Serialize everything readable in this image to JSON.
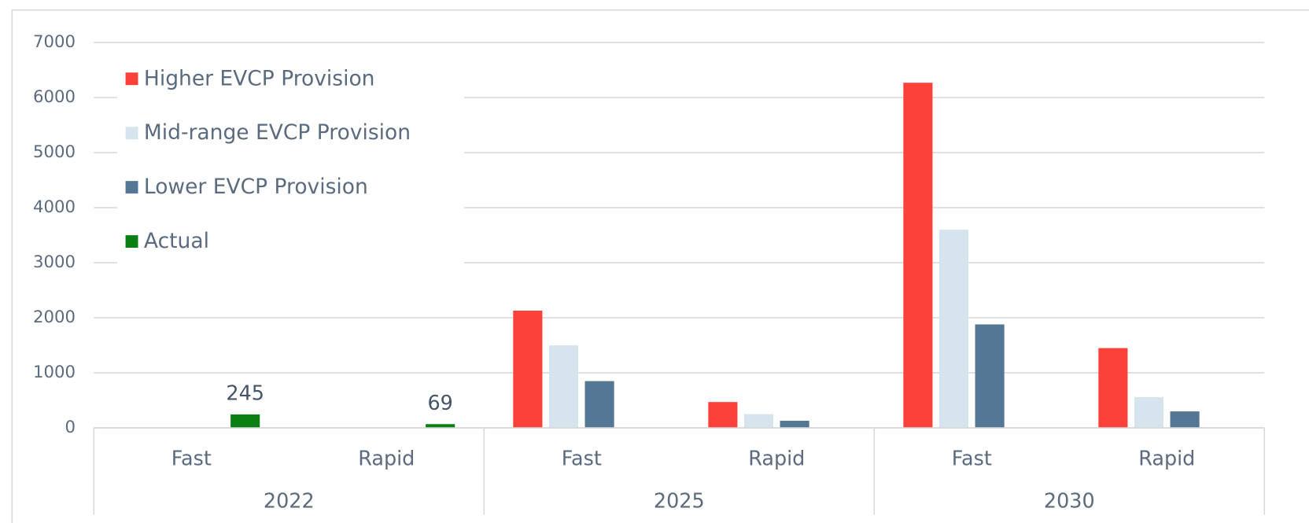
{
  "chart_data": {
    "type": "bar",
    "categories": [
      "Fast",
      "Rapid",
      "Fast",
      "Rapid",
      "Fast",
      "Rapid"
    ],
    "groups": [
      "2022",
      "2025",
      "2030"
    ],
    "series": [
      {
        "name": "Higher EVCP Provision",
        "color": "#fc413b",
        "values": [
          null,
          null,
          2130,
          470,
          6270,
          1450
        ]
      },
      {
        "name": "Mid-range EVCP Provision",
        "color": "#d6e4ee",
        "values": [
          null,
          null,
          1500,
          250,
          3600,
          560
        ]
      },
      {
        "name": "Lower EVCP Provision",
        "color": "#547796",
        "values": [
          null,
          null,
          850,
          130,
          1880,
          300
        ]
      },
      {
        "name": "Actual",
        "color": "#0a7f12",
        "values": [
          245,
          69,
          null,
          null,
          null,
          null
        ]
      }
    ],
    "ylim": [
      0,
      7000
    ],
    "yticks": [
      0,
      1000,
      2000,
      3000,
      4000,
      5000,
      6000,
      7000
    ],
    "grid": true,
    "legend": "upper-left"
  }
}
